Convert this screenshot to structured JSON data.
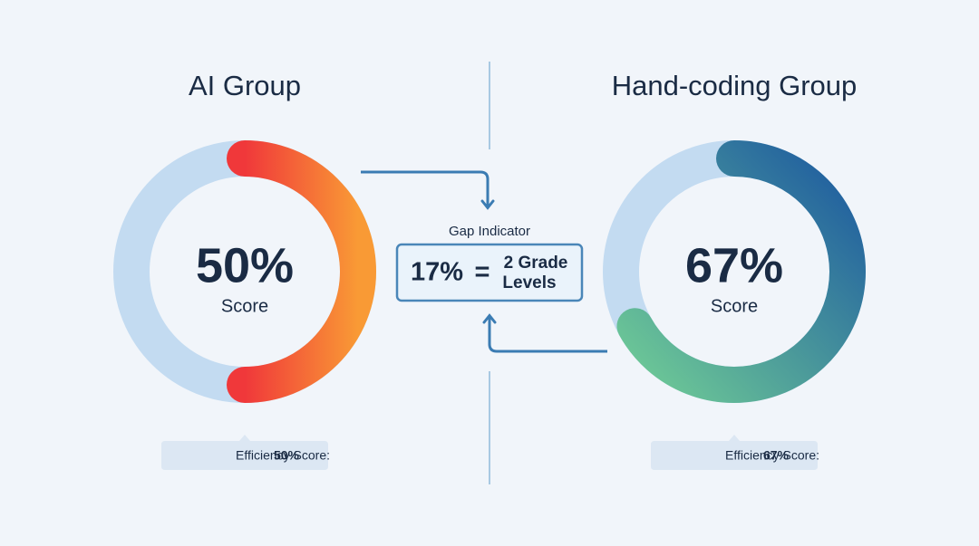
{
  "chart_data": [
    {
      "type": "donut",
      "title": "AI Group",
      "values": [
        50
      ],
      "value_labels": [
        "50%"
      ],
      "center_label": "Score",
      "footnote_label": "Efficiency Score:",
      "footnote_value": "50%",
      "colors": [
        "#f0383a",
        "#f99a35"
      ],
      "track_color": "#c3dbf1"
    },
    {
      "type": "donut",
      "title": "Hand-coding Group",
      "values": [
        67
      ],
      "value_labels": [
        "67%"
      ],
      "center_label": "Score",
      "footnote_label": "Efficiency Score:",
      "footnote_value": "67%",
      "colors": [
        "#6fcb96",
        "#1d5aa0"
      ],
      "track_color": "#c3dbf1"
    }
  ],
  "gap_indicator": {
    "title": "Gap Indicator",
    "value_label": "17%",
    "equals": "=",
    "result_lines": [
      "2 Grade",
      "Levels"
    ]
  }
}
